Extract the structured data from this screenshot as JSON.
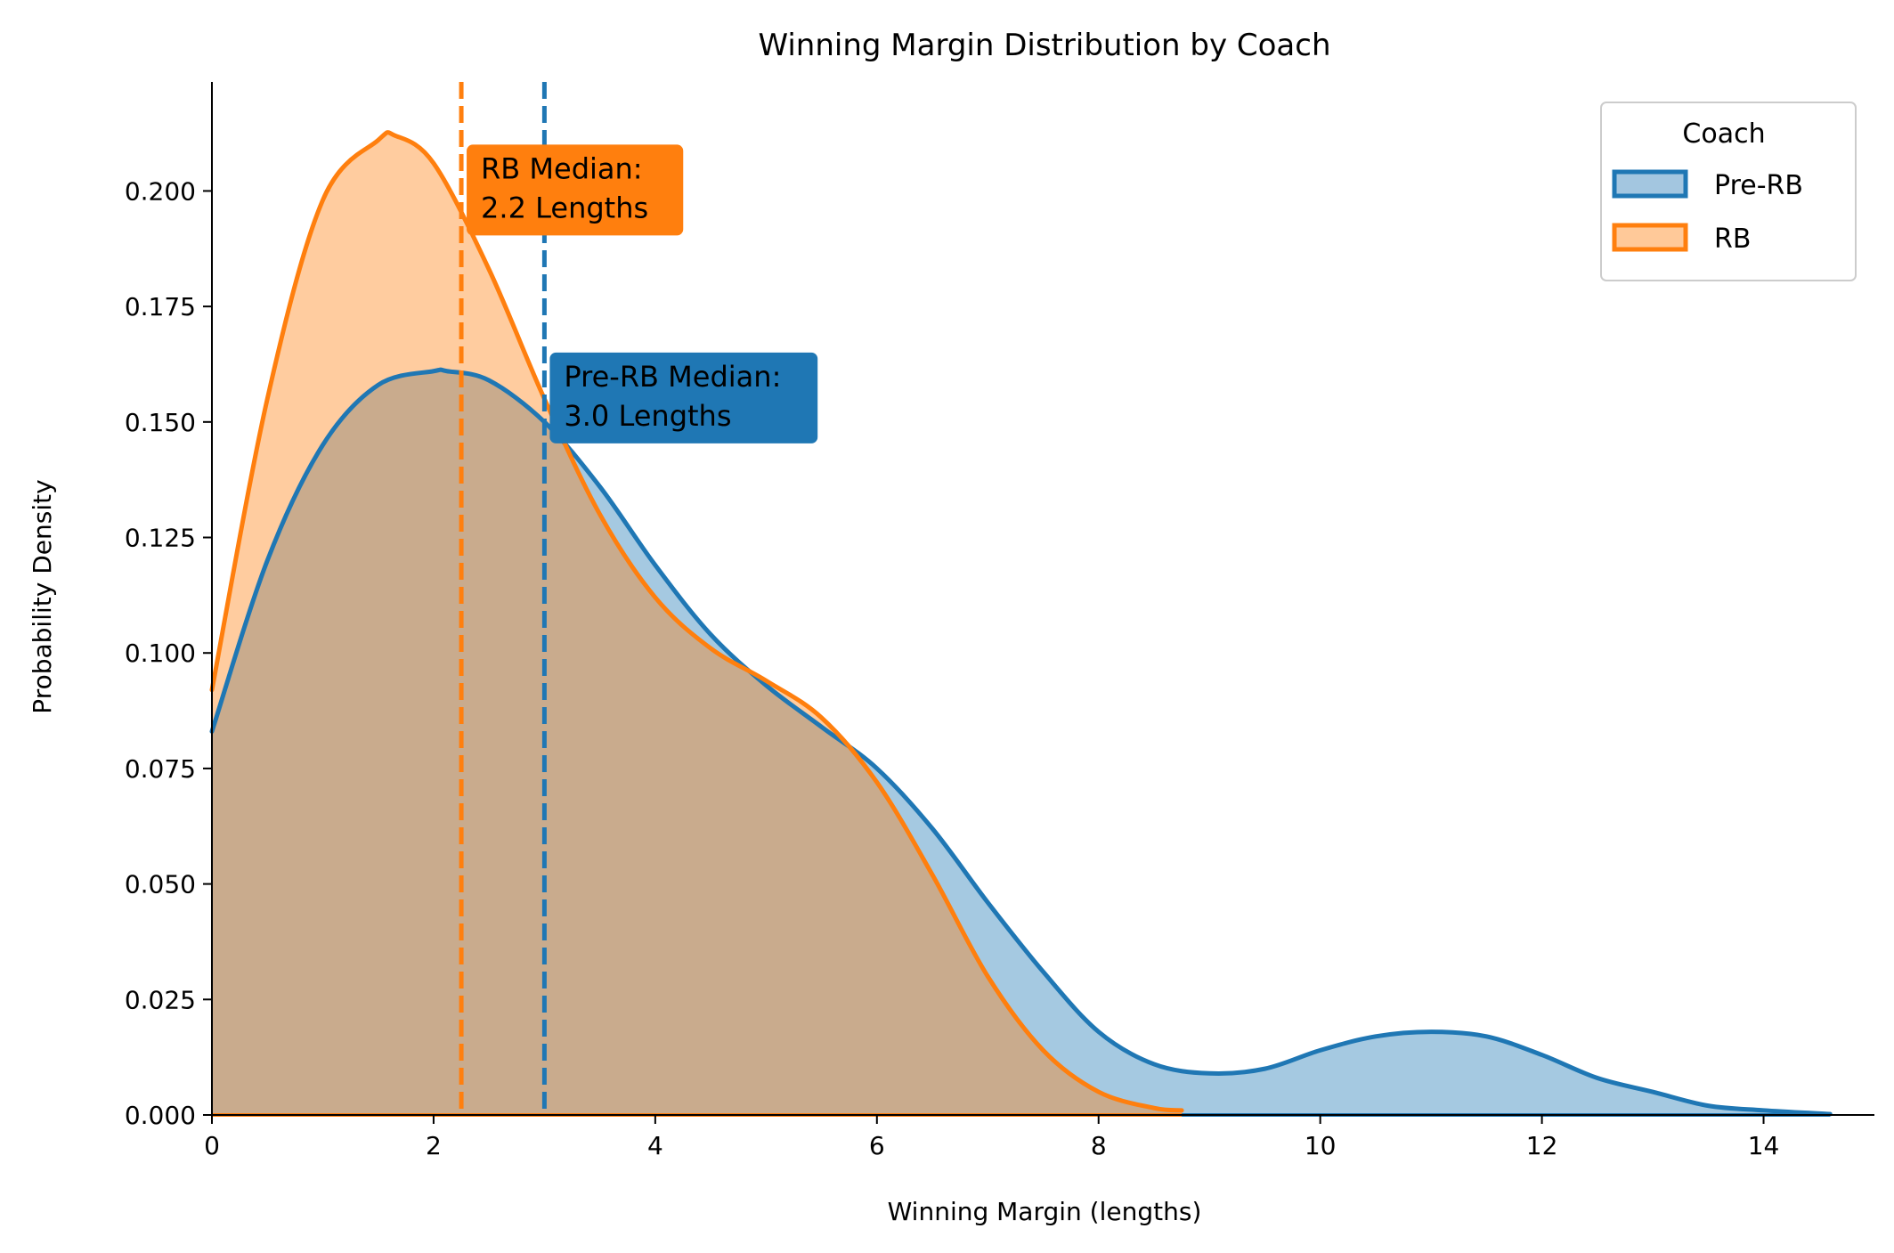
{
  "chart_data": {
    "type": "area",
    "title": "Winning Margin Distribution by Coach",
    "xlabel": "Winning Margin (lengths)",
    "ylabel": "Probability Density",
    "xlim": [
      0,
      15
    ],
    "ylim": [
      0,
      0.2236
    ],
    "x_ticks": [
      0,
      2,
      4,
      6,
      8,
      10,
      12,
      14
    ],
    "x_tick_labels": [
      "0",
      "2",
      "4",
      "6",
      "8",
      "10",
      "12",
      "14"
    ],
    "y_ticks": [
      0,
      0.025,
      0.05,
      0.075,
      0.1,
      0.125,
      0.15,
      0.175,
      0.2
    ],
    "y_tick_labels": [
      "0.000",
      "0.025",
      "0.050",
      "0.075",
      "0.100",
      "0.125",
      "0.150",
      "0.175",
      "0.200"
    ],
    "grid": false,
    "legend": {
      "title": "Coach",
      "placement": "top-right",
      "entries": [
        "Pre-RB",
        "RB"
      ]
    },
    "series": [
      {
        "name": "Pre-RB",
        "color": "#1f77b4",
        "fill": "#a3c6e0",
        "x": [
          0,
          0.5,
          1,
          1.5,
          2,
          2.12,
          2.5,
          3,
          3.5,
          4,
          4.5,
          5,
          5.5,
          6,
          6.5,
          7,
          7.5,
          8,
          8.5,
          9,
          9.5,
          10,
          10.5,
          11,
          11.5,
          12,
          12.5,
          13,
          13.5,
          14,
          14.6
        ],
        "y": [
          0.083,
          0.12,
          0.145,
          0.158,
          0.161,
          0.161,
          0.159,
          0.15,
          0.136,
          0.119,
          0.104,
          0.093,
          0.084,
          0.075,
          0.062,
          0.046,
          0.031,
          0.018,
          0.011,
          0.009,
          0.01,
          0.014,
          0.017,
          0.018,
          0.017,
          0.013,
          0.008,
          0.005,
          0.002,
          0.001,
          0.0002
        ]
      },
      {
        "name": "RB",
        "color": "#ff7f0e",
        "fill": "#ffc999",
        "x": [
          0,
          0.5,
          1,
          1.5,
          1.65,
          2,
          2.5,
          3,
          3.5,
          4,
          4.5,
          5,
          5.5,
          6,
          6.5,
          7,
          7.5,
          8,
          8.5,
          8.75
        ],
        "y": [
          0.092,
          0.155,
          0.198,
          0.211,
          0.212,
          0.206,
          0.183,
          0.155,
          0.13,
          0.112,
          0.101,
          0.094,
          0.086,
          0.072,
          0.052,
          0.03,
          0.014,
          0.005,
          0.0015,
          0.001
        ]
      }
    ],
    "medians": [
      {
        "series": "RB",
        "value": 2.25,
        "label": "RB Median:\n2.2 Lengths",
        "color": "#ff7f0e"
      },
      {
        "series": "Pre-RB",
        "value": 3.0,
        "label": "Pre-RB Median:\n3.0 Lengths",
        "color": "#1f77b4"
      }
    ],
    "annotations": [
      {
        "lines": [
          "RB Median:",
          "2.2 Lengths"
        ],
        "x": 2.25,
        "y": 0.2,
        "color": "#ff7f0e"
      },
      {
        "lines": [
          "Pre-RB Median:",
          "3.0 Lengths"
        ],
        "x": 3.0,
        "y": 0.155,
        "color": "#1f77b4"
      }
    ]
  }
}
